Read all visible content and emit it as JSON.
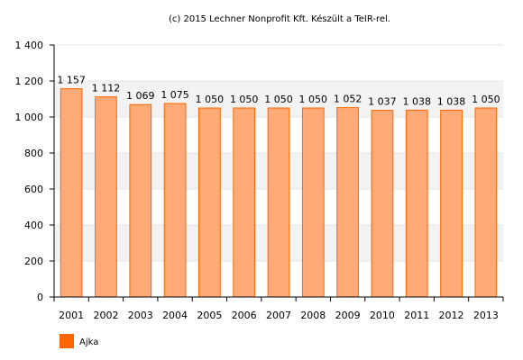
{
  "credit": "(c) 2015 Lechner Nonprofit Kft. Készült a TeIR-rel.",
  "chart_data": {
    "type": "bar",
    "title": "",
    "xlabel": "",
    "ylabel": "",
    "categories": [
      "2001",
      "2002",
      "2003",
      "2004",
      "2005",
      "2006",
      "2007",
      "2008",
      "2009",
      "2010",
      "2011",
      "2012",
      "2013"
    ],
    "series": [
      {
        "name": "Ajka",
        "color": "#ff6600",
        "values": [
          1157,
          1112,
          1069,
          1075,
          1050,
          1050,
          1050,
          1050,
          1052,
          1037,
          1038,
          1038,
          1050
        ],
        "labels": [
          "1 157",
          "1 112",
          "1 069",
          "1 075",
          "1 050",
          "1 050",
          "1 050",
          "1 050",
          "1 052",
          "1 037",
          "1 038",
          "1 038",
          "1 050"
        ]
      }
    ],
    "ylim": [
      0,
      1400
    ],
    "yticks": [
      0,
      200,
      400,
      600,
      800,
      1000,
      1200,
      1400
    ],
    "ytick_labels": [
      "0",
      "200",
      "400",
      "600",
      "800",
      "1 000",
      "1 200",
      "1 400"
    ],
    "grid": true,
    "legend_position": "bottom-left",
    "colors": {
      "bar_fill": "#ffaa77",
      "bar_stroke": "#ff6600",
      "band": "#f3f3f3",
      "gridline": "#e6e6e6",
      "axis": "#000000"
    }
  }
}
